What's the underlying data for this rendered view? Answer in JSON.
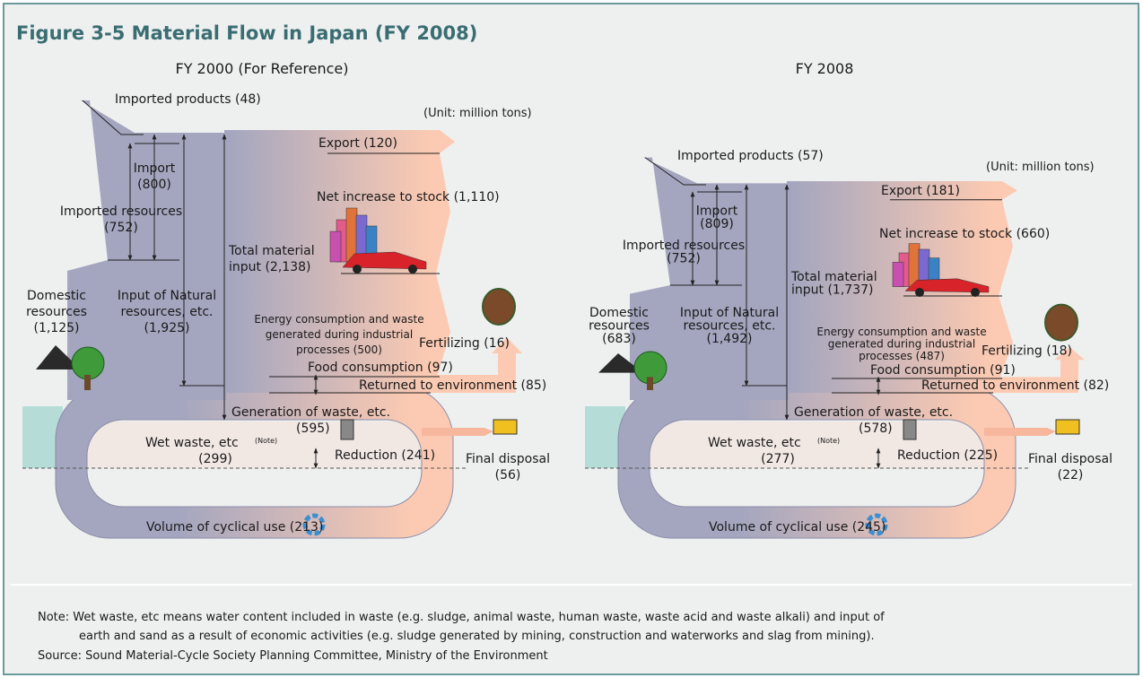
{
  "title": "Figure 3-5  Material Flow in Japan (FY 2008)",
  "panels": [
    {
      "heading": "FY 2000 (For Reference)",
      "unit": "(Unit: million tons)",
      "imported_products": "Imported products (48)",
      "import": [
        "Import",
        "(800)"
      ],
      "imported_resources": [
        "Imported resources",
        "(752)"
      ],
      "domestic_resources": [
        "Domestic",
        "resources",
        "(1,125)"
      ],
      "input_natural": [
        "Input of Natural",
        "resources, etc.",
        "(1,925)"
      ],
      "total_input": [
        "Total material",
        "input (2,138)"
      ],
      "export": "Export (120)",
      "net_increase": "Net increase to stock (1,110)",
      "energy": [
        "Energy consumption and waste",
        "generated during industrial",
        "processes (500)"
      ],
      "fertilizing": "Fertilizing (16)",
      "food": "Food consumption (97)",
      "returned": "Returned to environment (85)",
      "generation": "Generation of waste, etc.",
      "generation_value": "(595)",
      "wet_waste": "Wet waste, etc",
      "wet_note": "(Note)",
      "wet_value": "(299)",
      "reduction": "Reduction (241)",
      "final_disposal": [
        "Final disposal",
        "(56)"
      ],
      "cyclical": "Volume of cyclical use (213)"
    },
    {
      "heading": "FY 2008",
      "unit": "(Unit: million tons)",
      "imported_products": "Imported products (57)",
      "import": [
        "Import",
        "(809)"
      ],
      "imported_resources": [
        "Imported resources",
        "(752)"
      ],
      "domestic_resources": [
        "Domestic",
        "resources",
        "(683)"
      ],
      "input_natural": [
        "Input of Natural",
        "resources, etc.",
        "(1,492)"
      ],
      "total_input": [
        "Total material",
        "input (1,737)"
      ],
      "export": "Export (181)",
      "net_increase": "Net increase to stock (660)",
      "energy": [
        "Energy consumption and waste",
        "generated during industrial",
        "processes (487)"
      ],
      "fertilizing": "Fertilizing (18)",
      "food": "Food consumption (91)",
      "returned": "Returned to environment (82)",
      "generation": "Generation of waste, etc.",
      "generation_value": "(578)",
      "wet_waste": "Wet waste, etc",
      "wet_note": "(Note)",
      "wet_value": "(277)",
      "reduction": "Reduction (225)",
      "final_disposal": [
        "Final disposal",
        "(22)"
      ],
      "cyclical": "Volume of cyclical use (245)"
    }
  ],
  "notes": [
    "Note: Wet waste, etc means water content included in waste (e.g. sludge, animal waste, human waste, waste acid and waste alkali) and input of",
    "earth and sand as a result of economic activities (e.g. sludge generated by mining, construction and waterworks and slag from mining).",
    "Source: Sound Material-Cycle Society Planning Committee, Ministry of the Environment"
  ]
}
